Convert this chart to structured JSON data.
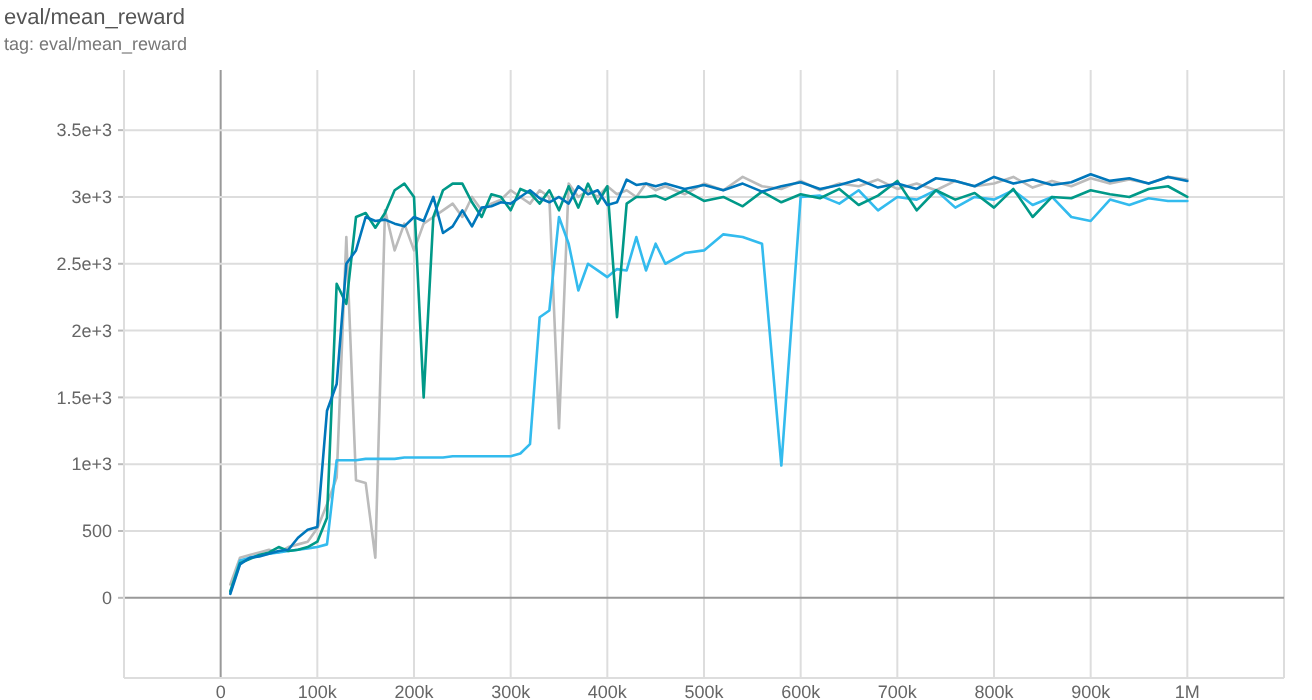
{
  "chart_data": {
    "type": "line",
    "title": "eval/mean_reward",
    "subtitle": "tag: eval/mean_reward",
    "x": [
      10000,
      20000,
      30000,
      40000,
      50000,
      60000,
      70000,
      80000,
      90000,
      100000,
      110000,
      120000,
      130000,
      140000,
      150000,
      160000,
      170000,
      180000,
      190000,
      200000,
      210000,
      220000,
      230000,
      240000,
      250000,
      260000,
      270000,
      280000,
      290000,
      300000,
      310000,
      320000,
      330000,
      340000,
      350000,
      360000,
      370000,
      380000,
      390000,
      400000,
      410000,
      420000,
      430000,
      440000,
      450000,
      460000,
      480000,
      500000,
      520000,
      540000,
      560000,
      580000,
      600000,
      620000,
      640000,
      660000,
      680000,
      700000,
      720000,
      740000,
      760000,
      780000,
      800000,
      820000,
      840000,
      860000,
      880000,
      900000,
      920000,
      940000,
      960000,
      980000,
      1000000
    ],
    "series": [
      {
        "color": "#bbbbbb",
        "values": [
          100,
          300,
          320,
          340,
          360,
          340,
          380,
          400,
          420,
          520,
          700,
          900,
          2700,
          880,
          860,
          300,
          2900,
          2600,
          2800,
          2600,
          2800,
          2850,
          2900,
          2950,
          2850,
          3000,
          2900,
          2950,
          2980,
          3050,
          3000,
          2950,
          3050,
          3000,
          1270,
          3100,
          3000,
          3050,
          3000,
          3080,
          3020,
          3050,
          3000,
          3100,
          3050,
          3080,
          3020,
          3100,
          3050,
          3150,
          3080,
          3060,
          3120,
          3050,
          3100,
          3080,
          3130,
          3060,
          3100,
          3050,
          3120,
          3080,
          3100,
          3150,
          3070,
          3120,
          3080,
          3140,
          3100,
          3130,
          3100,
          3150,
          3130
        ]
      },
      {
        "color": "#33bbee",
        "values": [
          40,
          280,
          300,
          320,
          330,
          340,
          350,
          360,
          370,
          380,
          400,
          1030,
          1030,
          1030,
          1040,
          1040,
          1040,
          1040,
          1050,
          1050,
          1050,
          1050,
          1050,
          1060,
          1060,
          1060,
          1060,
          1060,
          1060,
          1060,
          1080,
          1150,
          2100,
          2150,
          2850,
          2650,
          2300,
          2500,
          2450,
          2400,
          2460,
          2450,
          2700,
          2450,
          2650,
          2500,
          2580,
          2600,
          2720,
          2700,
          2650,
          990,
          3000,
          3010,
          2950,
          3050,
          2900,
          3000,
          2980,
          3050,
          2920,
          3000,
          2980,
          3050,
          2940,
          3000,
          2850,
          2820,
          2980,
          2940,
          2990,
          2970,
          2970
        ]
      },
      {
        "color": "#009988",
        "values": [
          50,
          260,
          290,
          320,
          340,
          380,
          350,
          360,
          380,
          420,
          600,
          2350,
          2200,
          2850,
          2880,
          2770,
          2880,
          3050,
          3100,
          3000,
          1500,
          2850,
          3050,
          3100,
          3100,
          2960,
          2850,
          3020,
          3000,
          2900,
          3060,
          3030,
          2950,
          3050,
          2900,
          3080,
          2920,
          3100,
          2950,
          3080,
          2100,
          2950,
          3000,
          3000,
          3010,
          2980,
          3050,
          2970,
          3000,
          2930,
          3040,
          2960,
          3020,
          2990,
          3060,
          2940,
          3010,
          3120,
          2900,
          3050,
          2980,
          3030,
          2920,
          3060,
          2850,
          3000,
          2990,
          3050,
          3020,
          3000,
          3060,
          3080,
          3000
        ]
      },
      {
        "color": "#0077bb",
        "values": [
          30,
          250,
          300,
          310,
          330,
          350,
          360,
          450,
          510,
          530,
          1400,
          1600,
          2500,
          2600,
          2850,
          2820,
          2830,
          2800,
          2780,
          2850,
          2820,
          3000,
          2730,
          2780,
          2900,
          2780,
          2920,
          2930,
          2960,
          2950,
          3000,
          3050,
          2990,
          2960,
          3000,
          2950,
          3080,
          3020,
          3050,
          2940,
          2960,
          3130,
          3090,
          3100,
          3080,
          3100,
          3060,
          3090,
          3050,
          3100,
          3040,
          3080,
          3110,
          3060,
          3090,
          3130,
          3070,
          3100,
          3060,
          3140,
          3120,
          3080,
          3150,
          3100,
          3130,
          3090,
          3110,
          3170,
          3120,
          3140,
          3100,
          3150,
          3120
        ]
      }
    ],
    "xlim": [
      -100000,
      1100000
    ],
    "xticks": [
      {
        "value": -100000,
        "label": null
      },
      0,
      {
        "value": 100000,
        "label": "100k"
      },
      {
        "value": 200000,
        "label": "200k"
      },
      {
        "value": 300000,
        "label": "300k"
      },
      {
        "value": 400000,
        "label": "400k"
      },
      {
        "value": 500000,
        "label": "500k"
      },
      {
        "value": 600000,
        "label": "600k"
      },
      {
        "value": 700000,
        "label": "700k"
      },
      {
        "value": 800000,
        "label": "800k"
      },
      {
        "value": 900000,
        "label": "900k"
      },
      {
        "value": 1000000,
        "label": "1M"
      },
      {
        "value": 1100000,
        "label": null
      }
    ],
    "ylim": [
      -600,
      3950
    ],
    "yticks": [
      0,
      500,
      {
        "value": 1000,
        "label": "1e+3"
      },
      {
        "value": 1500,
        "label": "1.5e+3"
      },
      {
        "value": 2000,
        "label": "2e+3"
      },
      {
        "value": 2500,
        "label": "2.5e+3"
      },
      {
        "value": 3000,
        "label": "3e+3"
      },
      {
        "value": 3500,
        "label": "3.5e+3"
      }
    ],
    "grid": true,
    "line_style": "solid"
  }
}
